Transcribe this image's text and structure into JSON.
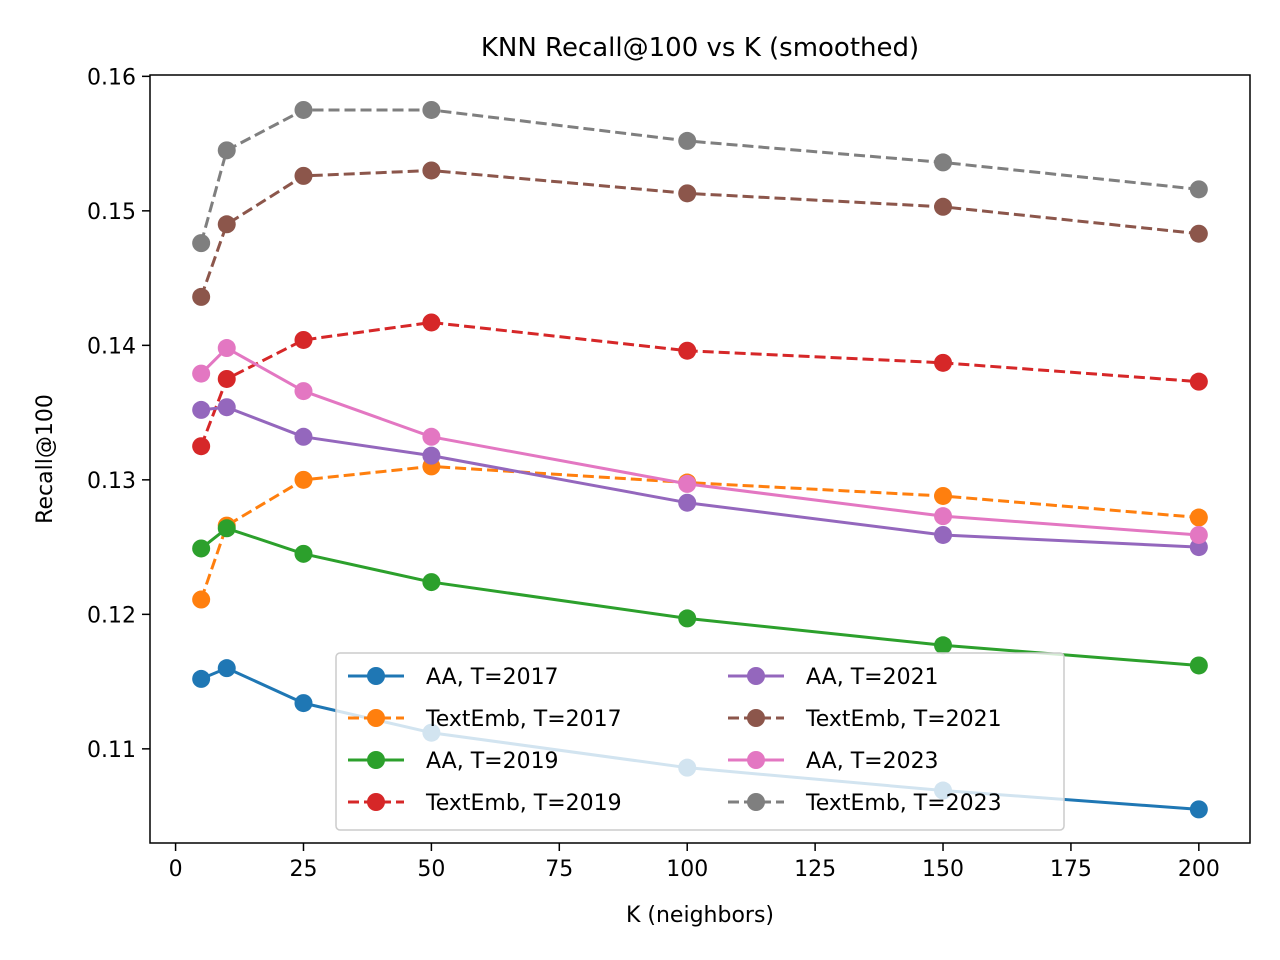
{
  "chart_data": {
    "type": "line",
    "title": "KNN Recall@100 vs K (smoothed)",
    "xlabel": "K (neighbors)",
    "ylabel": "Recall@100",
    "xlim": [
      -5,
      210
    ],
    "ylim": [
      0.103,
      0.1601
    ],
    "x": [
      5,
      10,
      25,
      50,
      100,
      150,
      200
    ],
    "xticks": [
      0,
      25,
      50,
      75,
      100,
      125,
      150,
      175,
      200
    ],
    "xtick_labels": [
      "0",
      "25",
      "50",
      "75",
      "100",
      "125",
      "150",
      "175",
      "200"
    ],
    "yticks": [
      0.11,
      0.12,
      0.13,
      0.14,
      0.15,
      0.16
    ],
    "ytick_labels": [
      "0.11",
      "0.12",
      "0.13",
      "0.14",
      "0.15",
      "0.16"
    ],
    "grid": false,
    "legend_position": "lower-center",
    "legend_columns": 2,
    "series": [
      {
        "name": "AA, T=2017",
        "color": "#1f77b4",
        "dash": "solid",
        "values": [
          0.1152,
          0.116,
          0.1134,
          0.1112,
          0.1086,
          0.1069,
          0.1055
        ]
      },
      {
        "name": "TextEmb, T=2017",
        "color": "#ff7f0e",
        "dash": "dashed",
        "values": [
          0.1211,
          0.1266,
          0.13,
          0.131,
          0.1298,
          0.1288,
          0.1272
        ]
      },
      {
        "name": "AA, T=2019",
        "color": "#2ca02c",
        "dash": "solid",
        "values": [
          0.1249,
          0.1264,
          0.1245,
          0.1224,
          0.1197,
          0.1177,
          0.1162
        ]
      },
      {
        "name": "TextEmb, T=2019",
        "color": "#d62728",
        "dash": "dashed",
        "values": [
          0.1325,
          0.1375,
          0.1404,
          0.1417,
          0.1396,
          0.1387,
          0.1373
        ]
      },
      {
        "name": "AA, T=2021",
        "color": "#9467bd",
        "dash": "solid",
        "values": [
          0.1352,
          0.1354,
          0.1332,
          0.1318,
          0.1283,
          0.1259,
          0.125
        ]
      },
      {
        "name": "TextEmb, T=2021",
        "color": "#8c564b",
        "dash": "dashed",
        "values": [
          0.1436,
          0.149,
          0.1526,
          0.153,
          0.1513,
          0.1503,
          0.1483
        ]
      },
      {
        "name": "AA, T=2023",
        "color": "#e377c2",
        "dash": "solid",
        "values": [
          0.1379,
          0.1398,
          0.1366,
          0.1332,
          0.1297,
          0.1273,
          0.1259
        ]
      },
      {
        "name": "TextEmb, T=2023",
        "color": "#7f7f7f",
        "dash": "dashed",
        "values": [
          0.1476,
          0.1545,
          0.1575,
          0.1575,
          0.1552,
          0.1536,
          0.1516
        ]
      }
    ]
  }
}
